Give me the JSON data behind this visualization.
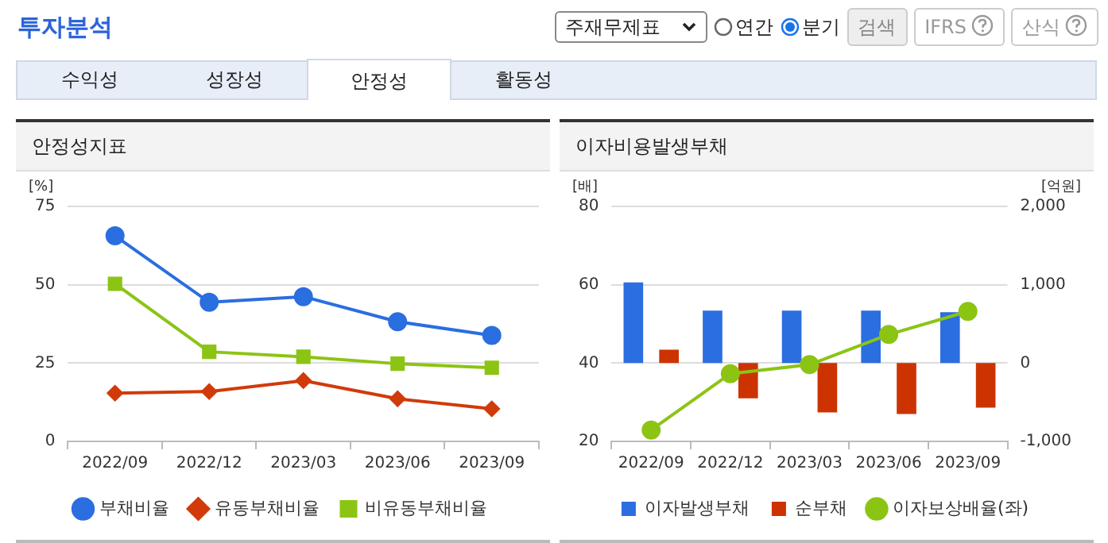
{
  "chart_data": [
    {
      "type": "line",
      "title": "안정성지표",
      "ylabel": "[%]",
      "categories": [
        "2022/09",
        "2022/12",
        "2023/03",
        "2023/06",
        "2023/09"
      ],
      "ylim": [
        0,
        75
      ],
      "yticks": [
        0,
        25,
        50,
        75
      ],
      "grid": "y",
      "legend": "bottom",
      "annotations": [
        "투자분석",
        "주재무제표",
        "연간",
        "분기",
        "검색",
        "IFRS",
        "산식",
        "수익성",
        "성장성",
        "안정성",
        "활동성"
      ],
      "series": [
        {
          "name": "부채비율",
          "color": "#2a6ee0",
          "marker": "circle",
          "values": [
            65.6,
            44.4,
            46.2,
            38.2,
            33.8
          ]
        },
        {
          "name": "유동부채비율",
          "color": "#d13a0a",
          "marker": "diamond",
          "values": [
            15.4,
            15.9,
            19.4,
            13.6,
            10.4
          ]
        },
        {
          "name": "비유동부채비율",
          "color": "#8cc414",
          "marker": "square",
          "values": [
            50.3,
            28.6,
            27.0,
            24.8,
            23.5
          ]
        }
      ]
    },
    {
      "type": "bar",
      "title": "이자비용발생부채",
      "ylabel": "[배]",
      "y2label": "[억원]",
      "categories": [
        "2022/09",
        "2022/12",
        "2023/03",
        "2023/06",
        "2023/09"
      ],
      "ylim": [
        20,
        80
      ],
      "yticks": [
        20,
        40,
        60,
        80
      ],
      "y2lim": [
        -1000,
        2000
      ],
      "y2ticks": [
        {
          "value": -1000,
          "label": "-1,000"
        },
        0,
        {
          "value": 1000,
          "label": "1,000"
        },
        {
          "value": 2000,
          "label": "2,000"
        }
      ],
      "grid": "y",
      "legend": "bottom",
      "series": [
        {
          "name": "이자발생부채",
          "color": "#2a6ee0",
          "axis": "y2",
          "values": [
            1030,
            670,
            670,
            670,
            650
          ]
        },
        {
          "name": "순부채",
          "color": "#cc3300",
          "axis": "y2",
          "values": [
            170,
            -450,
            -630,
            -650,
            -570
          ]
        },
        {
          "name": "이자보상배율(좌)",
          "type": "line",
          "color": "#8cc414",
          "marker": "circle",
          "axis": "y",
          "values": [
            22.9,
            37.3,
            39.6,
            47.3,
            53.2
          ]
        }
      ]
    }
  ]
}
